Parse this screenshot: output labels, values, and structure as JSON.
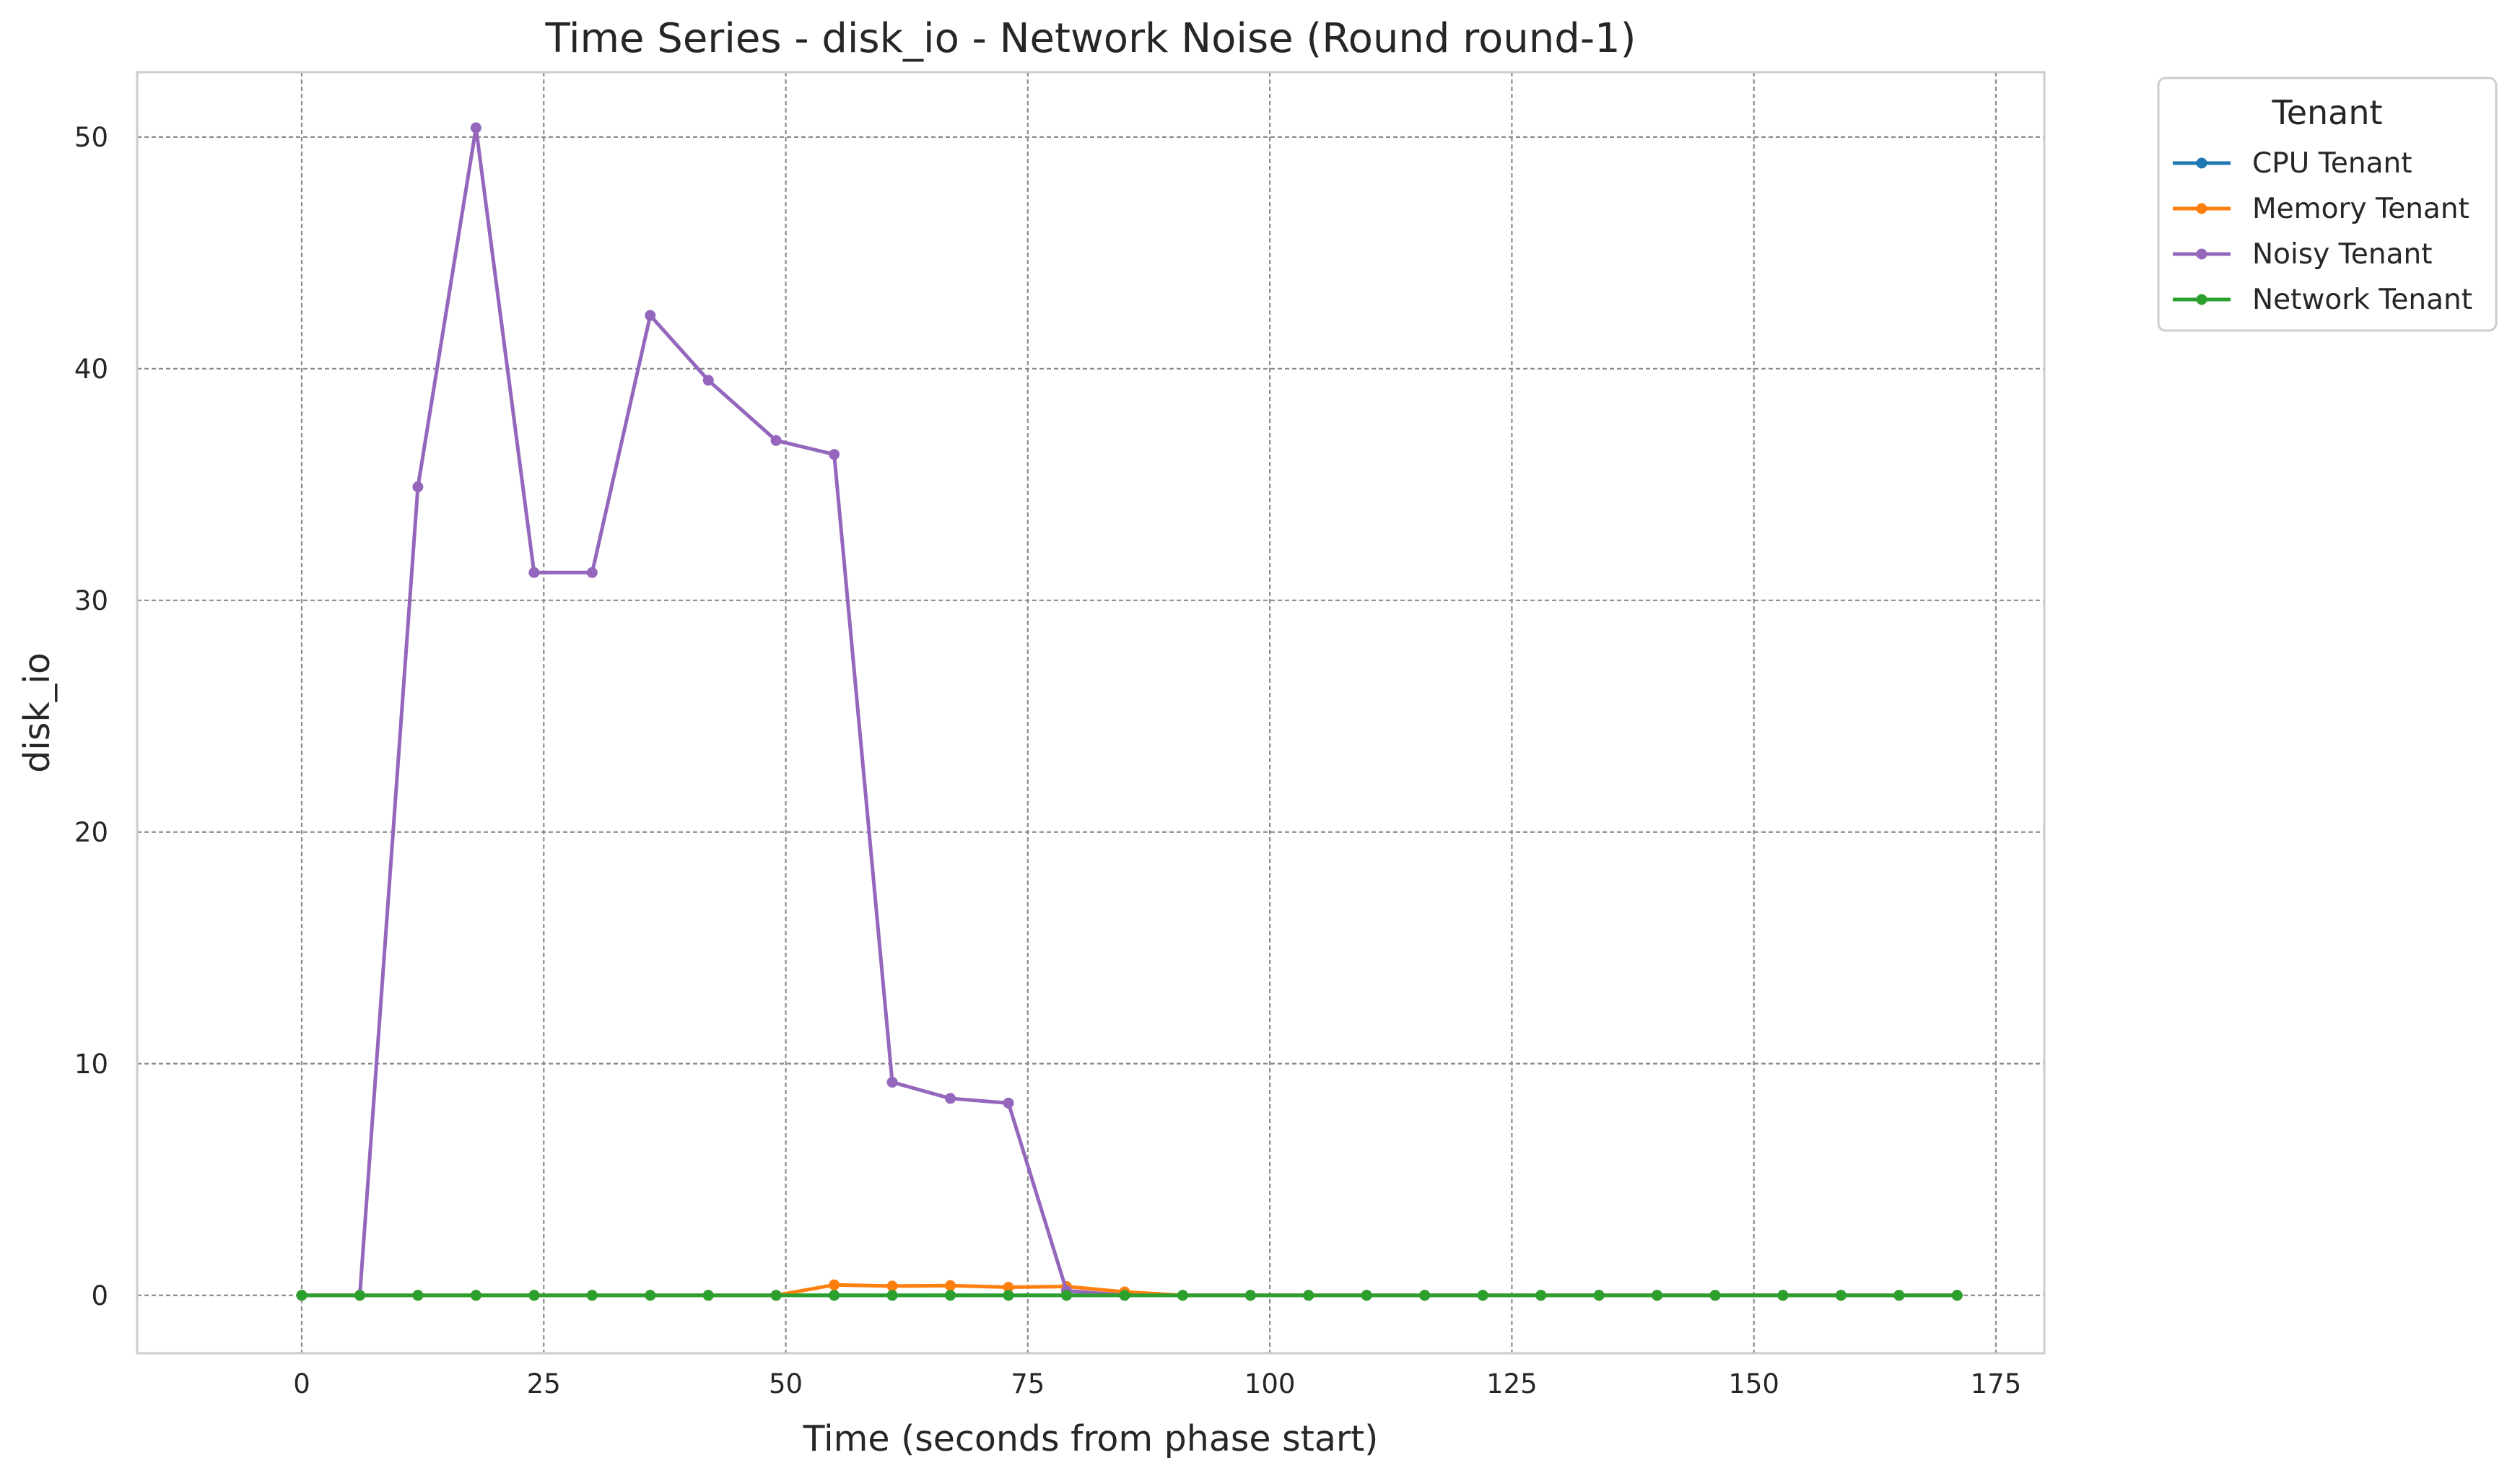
{
  "chart_data": {
    "type": "line",
    "title": "Time Series - disk_io - Network Noise (Round round-1)",
    "xlabel": "Time (seconds from phase start)",
    "ylabel": "disk_io",
    "xlim": [
      -17,
      180
    ],
    "ylim": [
      -2.5,
      52.8
    ],
    "xticks": [
      0,
      25,
      50,
      75,
      100,
      125,
      150,
      175
    ],
    "yticks": [
      0,
      10,
      20,
      30,
      40,
      50
    ],
    "grid": true,
    "legend": {
      "title": "Tenant",
      "placement": "outside-top-right"
    },
    "x": [
      0,
      6,
      12,
      18,
      24,
      30,
      36,
      42,
      49,
      55,
      61,
      67,
      73,
      79,
      85,
      91,
      98,
      104,
      110,
      116,
      122,
      128,
      134,
      140,
      146,
      153,
      159,
      165,
      171
    ],
    "series": [
      {
        "name": "CPU Tenant",
        "color": "#1f77b4",
        "values": [
          0,
          0,
          0,
          0,
          0,
          0,
          0,
          0,
          0,
          0,
          0,
          0,
          0,
          0,
          0,
          0,
          0,
          0,
          0,
          0,
          0,
          0,
          0,
          0,
          0,
          0,
          0,
          0,
          0
        ]
      },
      {
        "name": "Memory Tenant",
        "color": "#ff7f0e",
        "values": [
          0,
          0,
          0,
          0,
          0,
          0,
          0,
          0,
          0,
          0.45,
          0.4,
          0.42,
          0.35,
          0.38,
          0.15,
          0,
          0,
          0,
          0,
          0,
          0,
          0,
          0,
          0,
          0,
          0,
          0,
          0,
          0
        ]
      },
      {
        "name": "Noisy Tenant",
        "color": "#9467bd",
        "values": [
          0,
          0,
          34.9,
          50.4,
          31.2,
          31.2,
          42.3,
          39.5,
          36.9,
          36.3,
          9.2,
          8.5,
          8.3,
          0.2,
          0,
          0,
          0,
          0,
          0,
          0,
          0,
          0,
          0,
          0,
          0,
          0,
          0,
          0,
          0
        ]
      },
      {
        "name": "Network Tenant",
        "color": "#2ca02c",
        "values": [
          0,
          0,
          0,
          0,
          0,
          0,
          0,
          0,
          0,
          0,
          0,
          0,
          0,
          0,
          0,
          0,
          0,
          0,
          0,
          0,
          0,
          0,
          0,
          0,
          0,
          0,
          0,
          0,
          0
        ]
      }
    ]
  }
}
